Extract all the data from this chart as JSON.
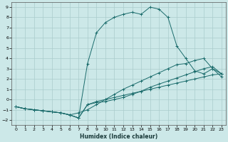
{
  "xlabel": "Humidex (Indice chaleur)",
  "bg_color": "#cce8e8",
  "grid_color": "#aacccc",
  "line_color": "#1a6b6b",
  "xlim": [
    -0.5,
    23.5
  ],
  "ylim": [
    -2.5,
    9.5
  ],
  "xticks": [
    0,
    1,
    2,
    3,
    4,
    5,
    6,
    7,
    8,
    9,
    10,
    11,
    12,
    13,
    14,
    15,
    16,
    17,
    18,
    19,
    20,
    21,
    22,
    23
  ],
  "yticks": [
    -2,
    -1,
    0,
    1,
    2,
    3,
    4,
    5,
    6,
    7,
    8,
    9
  ],
  "line_peak": {
    "x": [
      0,
      1,
      2,
      3,
      4,
      5,
      6,
      7,
      8,
      9,
      10,
      11,
      12,
      13,
      14,
      15,
      16,
      17,
      18,
      19,
      20,
      21,
      22,
      23
    ],
    "y": [
      -0.7,
      -0.9,
      -1.0,
      -1.1,
      -1.2,
      -1.3,
      -1.5,
      -1.8,
      3.5,
      6.5,
      7.5,
      8.0,
      8.3,
      8.5,
      8.3,
      9.0,
      8.8,
      8.0,
      5.2,
      4.0,
      2.8,
      2.5,
      3.0,
      2.2
    ]
  },
  "line_mid1": {
    "x": [
      0,
      1,
      2,
      3,
      4,
      5,
      6,
      7,
      8,
      9,
      10,
      11,
      12,
      13,
      14,
      15,
      16,
      17,
      18,
      19,
      20,
      21,
      22,
      23
    ],
    "y": [
      -0.7,
      -0.9,
      -1.0,
      -1.1,
      -1.2,
      -1.3,
      -1.5,
      -1.3,
      -1.0,
      -0.5,
      0.0,
      0.5,
      1.0,
      1.4,
      1.8,
      2.2,
      2.6,
      3.0,
      3.4,
      3.5,
      3.8,
      4.0,
      3.0,
      2.5
    ]
  },
  "line_mid2": {
    "x": [
      0,
      1,
      2,
      3,
      4,
      5,
      6,
      7,
      8,
      9,
      10,
      11,
      12,
      13,
      14,
      15,
      16,
      17,
      18,
      19,
      20,
      21,
      22,
      23
    ],
    "y": [
      -0.7,
      -0.9,
      -1.0,
      -1.1,
      -1.2,
      -1.3,
      -1.5,
      -1.8,
      -0.5,
      -0.3,
      -0.2,
      0.0,
      0.2,
      0.5,
      0.8,
      1.2,
      1.5,
      1.8,
      2.1,
      2.4,
      2.7,
      3.0,
      3.2,
      2.5
    ]
  },
  "line_flat": {
    "x": [
      0,
      1,
      2,
      3,
      4,
      5,
      6,
      7,
      8,
      9,
      10,
      11,
      12,
      13,
      14,
      15,
      16,
      17,
      18,
      19,
      20,
      21,
      22,
      23
    ],
    "y": [
      -0.7,
      -0.9,
      -1.0,
      -1.1,
      -1.2,
      -1.3,
      -1.5,
      -1.8,
      -0.5,
      -0.2,
      0.0,
      0.2,
      0.4,
      0.6,
      0.8,
      1.0,
      1.2,
      1.4,
      1.6,
      1.8,
      2.0,
      2.2,
      2.4,
      2.5
    ]
  }
}
